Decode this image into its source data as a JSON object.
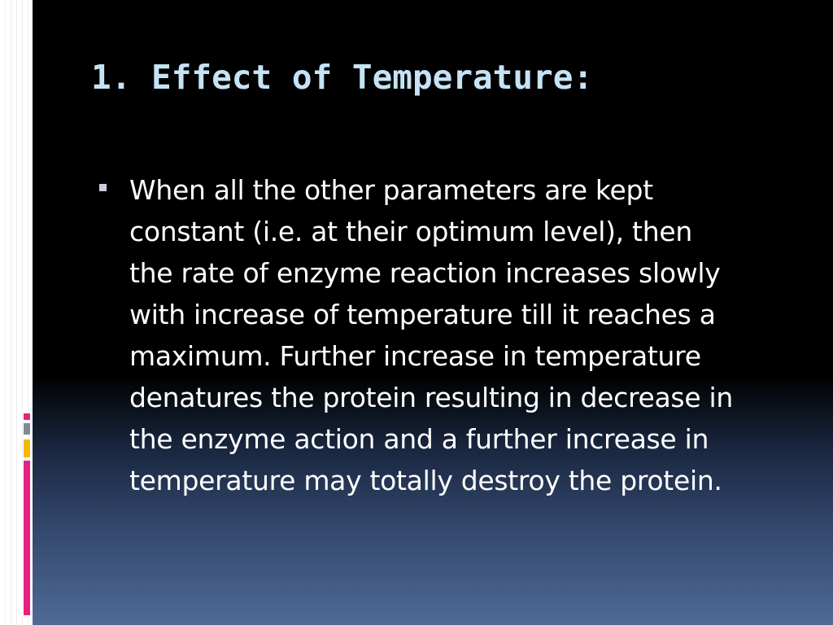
{
  "slide": {
    "title": "1. Effect of Temperature:",
    "bullets": [
      {
        "lines": [
          "When all the other parameters are kept",
          "constant (i.e. at their optimum level), then",
          "the rate of enzyme reaction increases slowly",
          "with increase of temperature till it reaches a",
          "maximum. Further increase in temperature",
          "denatures the protein resulting in decrease in",
          "the enzyme action and a further increase in",
          "temperature may totally destroy the protein."
        ]
      }
    ]
  },
  "colors": {
    "title": "#c6e3f5",
    "text": "#ffffff",
    "accent_pink": "#e8217f",
    "accent_yellow": "#f5b800",
    "accent_gray": "#7f8b98"
  },
  "icons": {
    "bullet": "square-bullet-icon"
  }
}
